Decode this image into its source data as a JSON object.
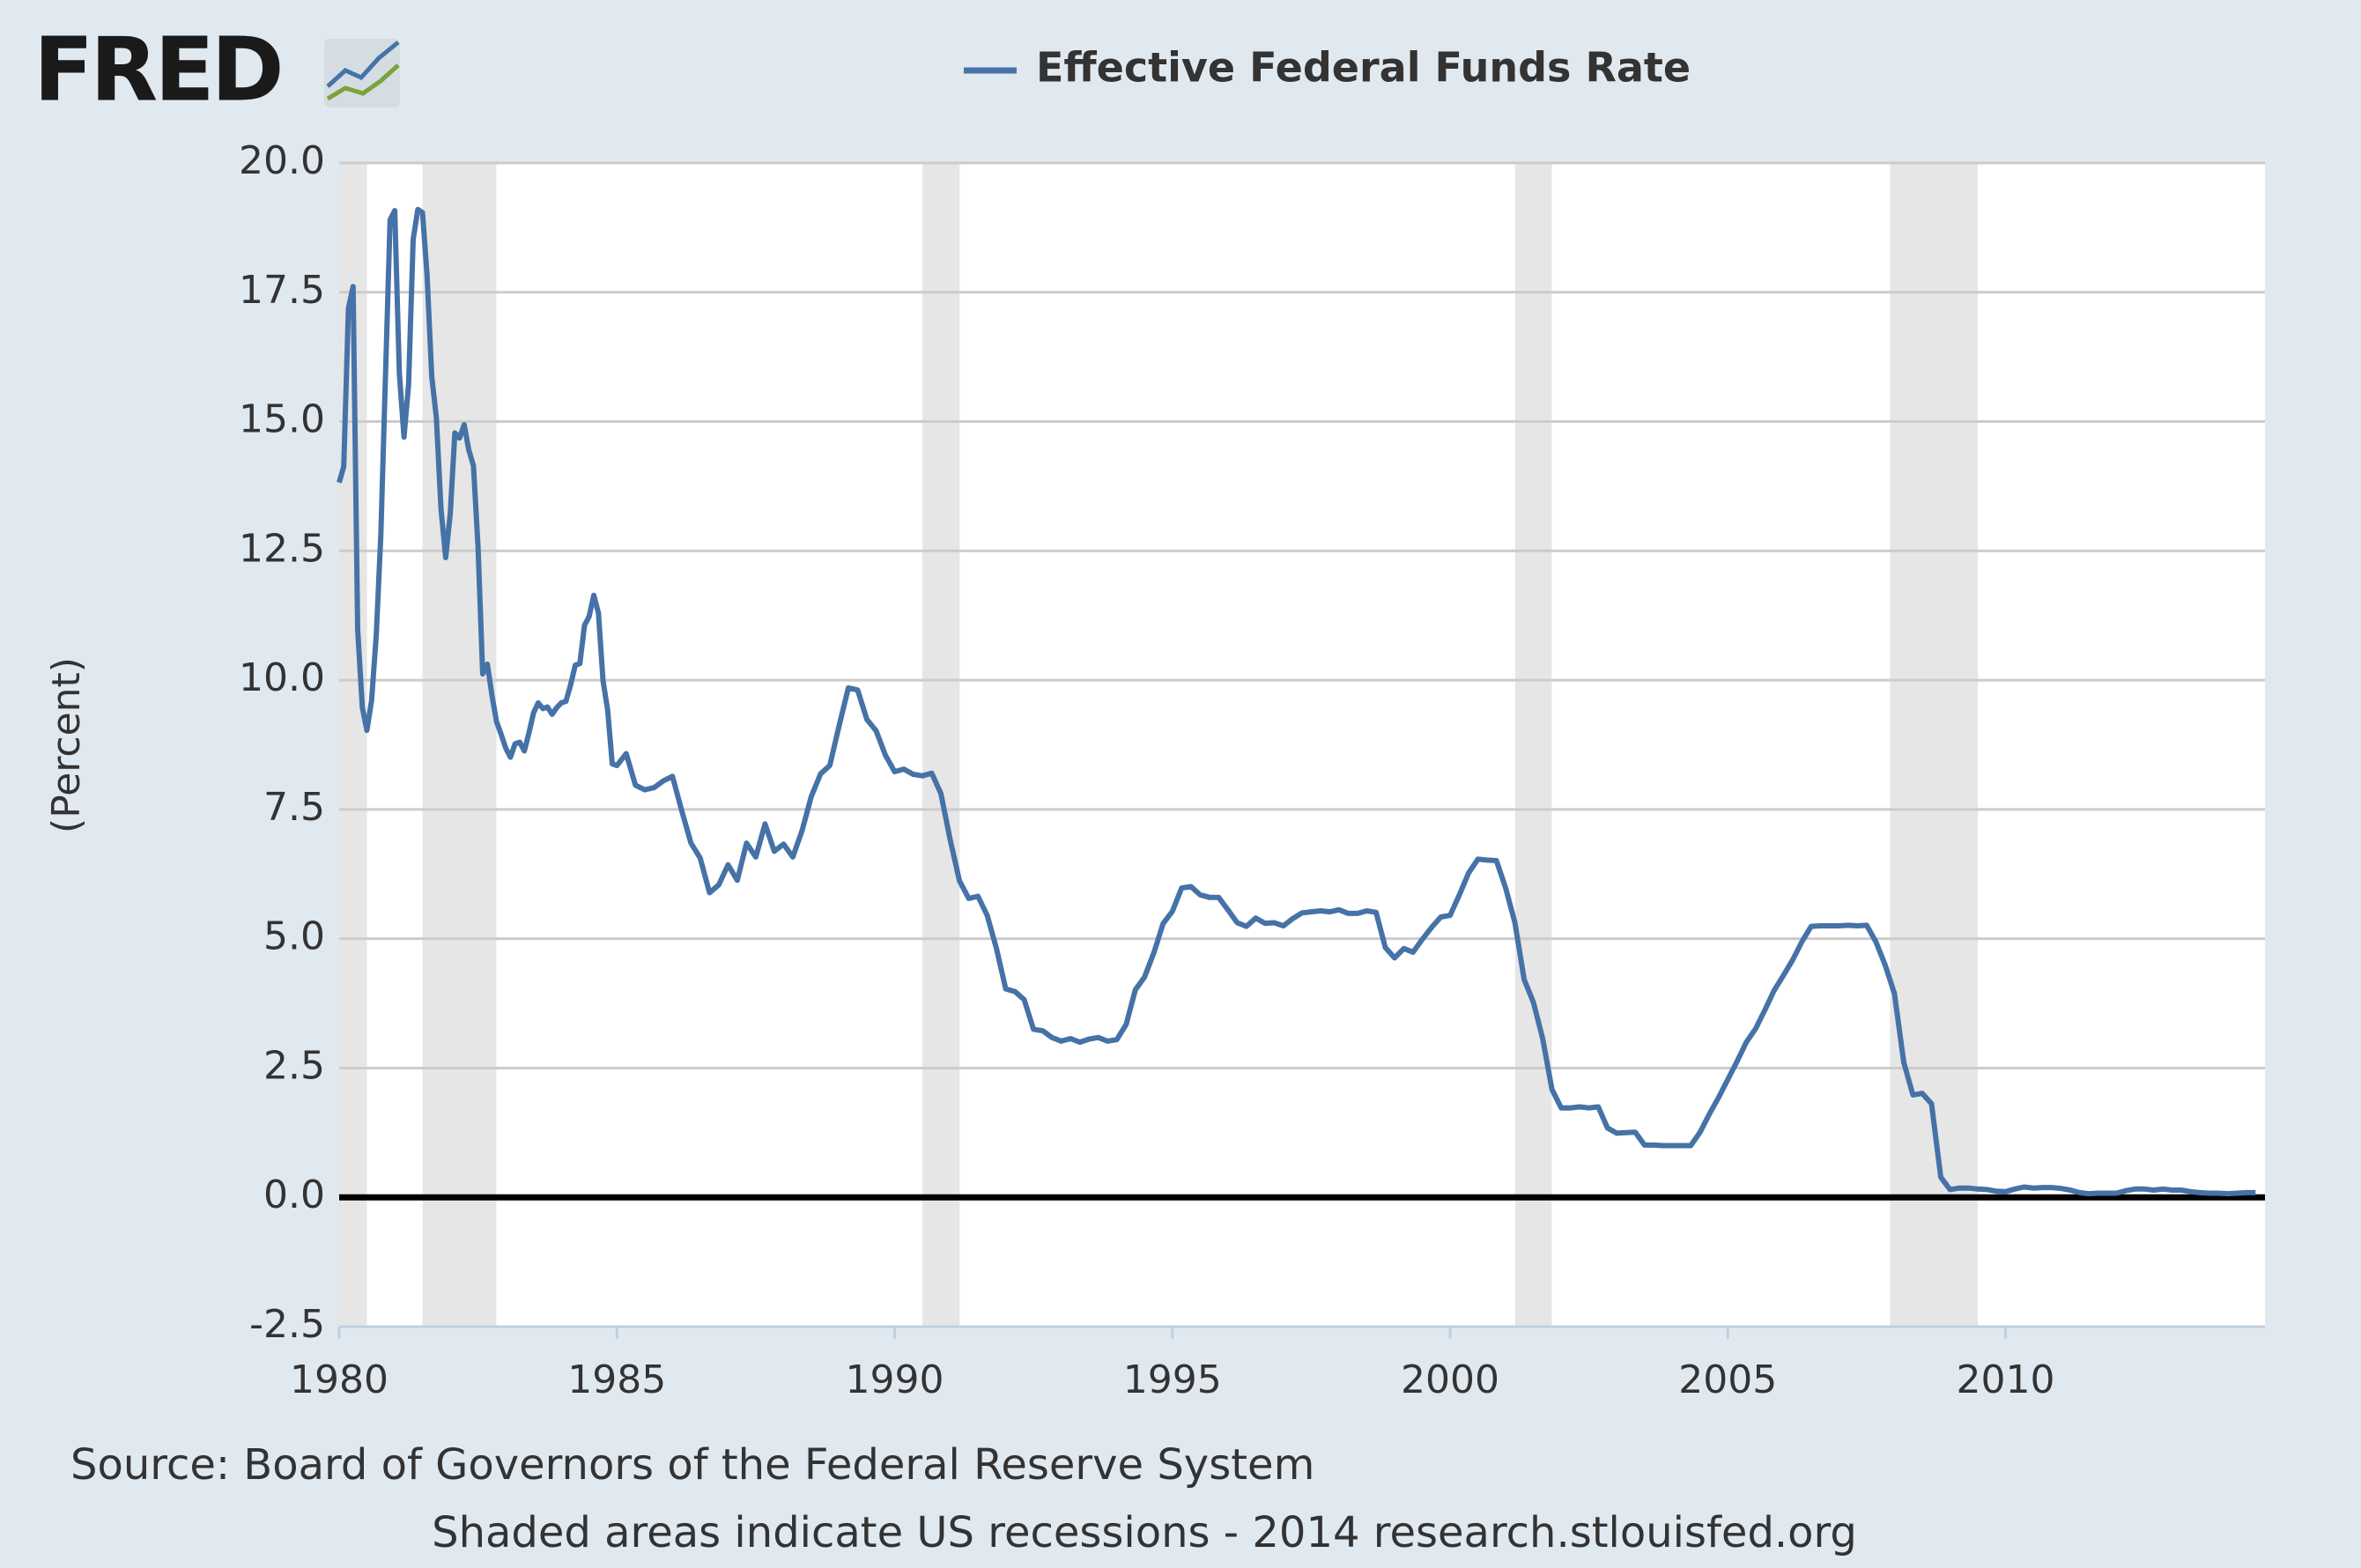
{
  "chart_data": {
    "type": "line",
    "logo": "FRED",
    "y_label": "(Percent)",
    "source": "Source: Board of Governors of the Federal Reserve System",
    "note": "Shaded areas indicate US recessions - 2014 research.stlouisfed.org",
    "xlim": [
      1980,
      2014.67
    ],
    "xticks": [
      1980,
      1985,
      1990,
      1995,
      2000,
      2005,
      2010
    ],
    "ylim": [
      -2.5,
      20
    ],
    "yticks": [
      {
        "value": -2.5,
        "label": "-2.5"
      },
      {
        "value": 0,
        "label": "0.0"
      },
      2.5,
      {
        "value": 5,
        "label": "5.0"
      },
      7.5,
      {
        "value": 10,
        "label": "10.0"
      },
      12.5,
      {
        "value": 15,
        "label": "15.0"
      },
      17.5,
      {
        "value": 20,
        "label": "20.0"
      }
    ],
    "grid": true,
    "recessions": [
      [
        1980.0,
        1980.5
      ],
      [
        1981.5,
        1982.83
      ],
      [
        1990.5,
        1991.17
      ],
      [
        2001.17,
        2001.83
      ],
      [
        2007.92,
        2009.5
      ]
    ],
    "series": [
      {
        "name": "Effective Federal Funds Rate",
        "color": "#4572a7",
        "x": [
          1980,
          1980.083,
          1980.167,
          1980.25,
          1980.333,
          1980.417,
          1980.5,
          1980.583,
          1980.667,
          1980.75,
          1980.833,
          1980.917,
          1981,
          1981.083,
          1981.167,
          1981.25,
          1981.333,
          1981.417,
          1981.5,
          1981.583,
          1981.667,
          1981.75,
          1981.833,
          1981.917,
          1982,
          1982.083,
          1982.167,
          1982.25,
          1982.333,
          1982.417,
          1982.5,
          1982.583,
          1982.667,
          1982.75,
          1982.833,
          1982.917,
          1983,
          1983.083,
          1983.167,
          1983.25,
          1983.333,
          1983.417,
          1983.5,
          1983.583,
          1983.667,
          1983.75,
          1983.833,
          1983.917,
          1984,
          1984.083,
          1984.167,
          1984.25,
          1984.333,
          1984.417,
          1984.5,
          1984.583,
          1984.667,
          1984.75,
          1984.833,
          1984.917,
          1985,
          1985.167,
          1985.333,
          1985.5,
          1985.667,
          1985.833,
          1986,
          1986.167,
          1986.333,
          1986.5,
          1986.667,
          1986.833,
          1987,
          1987.167,
          1987.333,
          1987.5,
          1987.667,
          1987.833,
          1988,
          1988.167,
          1988.333,
          1988.5,
          1988.667,
          1988.833,
          1989,
          1989.167,
          1989.333,
          1989.5,
          1989.667,
          1989.833,
          1990,
          1990.167,
          1990.333,
          1990.5,
          1990.667,
          1990.833,
          1991,
          1991.167,
          1991.333,
          1991.5,
          1991.667,
          1991.833,
          1992,
          1992.167,
          1992.333,
          1992.5,
          1992.667,
          1992.833,
          1993,
          1993.167,
          1993.333,
          1993.5,
          1993.667,
          1993.833,
          1994,
          1994.167,
          1994.333,
          1994.5,
          1994.667,
          1994.833,
          1995,
          1995.167,
          1995.333,
          1995.5,
          1995.667,
          1995.833,
          1996,
          1996.167,
          1996.333,
          1996.5,
          1996.667,
          1996.833,
          1997,
          1997.167,
          1997.333,
          1997.5,
          1997.667,
          1997.833,
          1998,
          1998.167,
          1998.333,
          1998.5,
          1998.667,
          1998.833,
          1999,
          1999.167,
          1999.333,
          1999.5,
          1999.667,
          1999.833,
          2000,
          2000.167,
          2000.333,
          2000.5,
          2000.667,
          2000.833,
          2001,
          2001.167,
          2001.333,
          2001.5,
          2001.667,
          2001.833,
          2002,
          2002.167,
          2002.333,
          2002.5,
          2002.667,
          2002.833,
          2003,
          2003.167,
          2003.333,
          2003.5,
          2003.667,
          2003.833,
          2004,
          2004.167,
          2004.333,
          2004.5,
          2004.667,
          2004.833,
          2005,
          2005.167,
          2005.333,
          2005.5,
          2005.667,
          2005.833,
          2006,
          2006.167,
          2006.333,
          2006.5,
          2006.667,
          2006.833,
          2007,
          2007.167,
          2007.333,
          2007.5,
          2007.667,
          2007.833,
          2008,
          2008.167,
          2008.333,
          2008.5,
          2008.667,
          2008.833,
          2009,
          2009.167,
          2009.333,
          2009.5,
          2009.667,
          2009.833,
          2010,
          2010.167,
          2010.333,
          2010.5,
          2010.667,
          2010.833,
          2011,
          2011.167,
          2011.333,
          2011.5,
          2011.667,
          2011.833,
          2012,
          2012.167,
          2012.333,
          2012.5,
          2012.667,
          2012.833,
          2013,
          2013.167,
          2013.333,
          2013.5,
          2013.667,
          2013.833,
          2014,
          2014.167,
          2014.333,
          2014.5
        ],
        "values": [
          13.82,
          14.13,
          17.19,
          17.61,
          10.98,
          9.47,
          9.03,
          9.61,
          10.87,
          12.81,
          15.85,
          18.9,
          19.08,
          15.93,
          14.7,
          15.72,
          18.52,
          19.1,
          19.04,
          17.82,
          15.87,
          15.08,
          13.31,
          12.37,
          13.22,
          14.78,
          14.68,
          14.94,
          14.45,
          14.15,
          12.59,
          10.12,
          10.31,
          9.71,
          9.2,
          8.95,
          8.68,
          8.51,
          8.77,
          8.8,
          8.63,
          8.98,
          9.37,
          9.56,
          9.45,
          9.48,
          9.34,
          9.47,
          9.56,
          9.59,
          9.91,
          10.29,
          10.32,
          11.06,
          11.23,
          11.64,
          11.3,
          9.99,
          9.43,
          8.38,
          8.35,
          8.58,
          7.97,
          7.88,
          7.92,
          8.05,
          8.14,
          7.48,
          6.85,
          6.56,
          5.89,
          6.04,
          6.43,
          6.13,
          6.85,
          6.58,
          7.22,
          6.69,
          6.83,
          6.58,
          7.09,
          7.75,
          8.19,
          8.35,
          9.12,
          9.85,
          9.81,
          9.24,
          9.02,
          8.55,
          8.23,
          8.28,
          8.18,
          8.15,
          8.2,
          7.81,
          6.91,
          6.12,
          5.78,
          5.82,
          5.45,
          4.81,
          4.03,
          3.98,
          3.82,
          3.25,
          3.22,
          3.09,
          3.02,
          3.07,
          3.0,
          3.06,
          3.09,
          3.02,
          3.05,
          3.34,
          4.01,
          4.26,
          4.73,
          5.29,
          5.53,
          5.98,
          6.01,
          5.85,
          5.8,
          5.8,
          5.56,
          5.31,
          5.24,
          5.4,
          5.3,
          5.31,
          5.25,
          5.39,
          5.5,
          5.52,
          5.54,
          5.52,
          5.56,
          5.49,
          5.49,
          5.54,
          5.51,
          4.83,
          4.63,
          4.81,
          4.74,
          4.99,
          5.22,
          5.42,
          5.45,
          5.85,
          6.27,
          6.54,
          6.52,
          6.51,
          5.98,
          5.31,
          4.21,
          3.77,
          3.07,
          2.09,
          1.73,
          1.73,
          1.75,
          1.73,
          1.75,
          1.34,
          1.24,
          1.25,
          1.26,
          1.01,
          1.01,
          1.0,
          1.0,
          1.0,
          1.0,
          1.26,
          1.61,
          1.93,
          2.28,
          2.63,
          3.0,
          3.26,
          3.62,
          4.0,
          4.29,
          4.59,
          4.94,
          5.24,
          5.25,
          5.25,
          5.25,
          5.26,
          5.25,
          5.26,
          4.94,
          4.49,
          3.94,
          2.61,
          1.98,
          2.01,
          1.81,
          0.39,
          0.15,
          0.18,
          0.18,
          0.16,
          0.15,
          0.12,
          0.11,
          0.16,
          0.2,
          0.18,
          0.19,
          0.19,
          0.17,
          0.14,
          0.09,
          0.07,
          0.08,
          0.08,
          0.08,
          0.13,
          0.16,
          0.16,
          0.14,
          0.16,
          0.14,
          0.14,
          0.11,
          0.09,
          0.08,
          0.08,
          0.07,
          0.08,
          0.09,
          0.09
        ]
      }
    ]
  }
}
